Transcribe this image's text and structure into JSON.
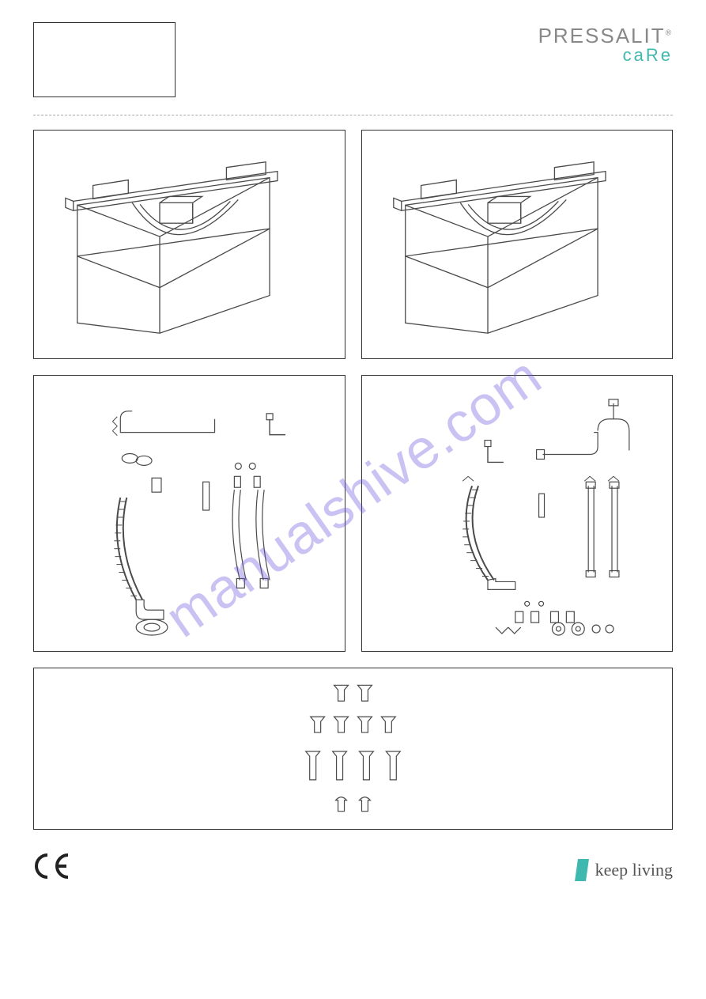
{
  "brand": {
    "top": "PRESSALIT",
    "reg": "®",
    "bottom": "caRe"
  },
  "footer": {
    "ce": "CE",
    "tagline": "keep living"
  },
  "watermark": "manualshive.com",
  "colors": {
    "stroke": "#4a4a4a",
    "light": "#bfbfbf",
    "teal": "#3fb8af",
    "watermark": "rgba(100,80,220,0.35)"
  },
  "panels": {
    "unit_left": {
      "type": "isometric-unit",
      "has_brackets": true
    },
    "unit_right": {
      "type": "isometric-unit",
      "has_brackets": true
    },
    "parts_left": {
      "type": "parts-layout"
    },
    "parts_right": {
      "type": "parts-layout"
    }
  },
  "fasteners": {
    "row1": {
      "count": 2,
      "head": "flat",
      "shaft_h": 14
    },
    "row2": {
      "count": 4,
      "head": "flat",
      "shaft_h": 14
    },
    "row3": {
      "count": 4,
      "head": "flat",
      "shaft_h": 30
    },
    "row4": {
      "count": 2,
      "head": "round",
      "shaft_h": 14
    }
  }
}
